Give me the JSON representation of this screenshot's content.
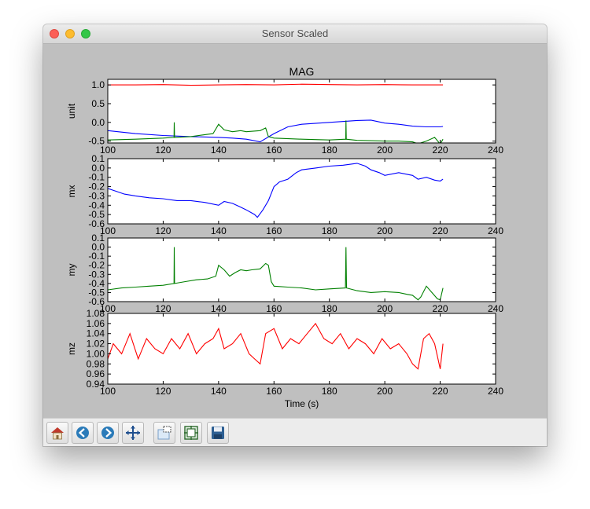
{
  "window": {
    "title": "Sensor Scaled"
  },
  "toolbar": {
    "buttons": [
      {
        "icon": "home-icon"
      },
      {
        "icon": "back-icon"
      },
      {
        "icon": "forward-icon"
      },
      {
        "icon": "pan-icon"
      },
      {
        "icon": "zoom-icon"
      },
      {
        "icon": "subplots-icon"
      },
      {
        "icon": "save-icon"
      }
    ]
  },
  "colors": {
    "red": "#ff0000",
    "green": "#008000",
    "blue": "#0000ff"
  },
  "chart_data": [
    {
      "type": "line",
      "title": "MAG",
      "ylabel": "unit",
      "xlim": [
        100,
        240
      ],
      "ylim": [
        -0.55,
        1.15
      ],
      "xticks": [
        "100",
        "120",
        "140",
        "160",
        "180",
        "200",
        "220",
        "240"
      ],
      "yticks": [
        "1.0",
        "0.5",
        "0.0",
        "-0.5"
      ],
      "grid": false,
      "series": [
        {
          "color": "red",
          "x": [
            100,
            110,
            120,
            130,
            140,
            150,
            160,
            170,
            180,
            190,
            200,
            210,
            220,
            221
          ],
          "values": [
            1.0,
            1.0,
            1.01,
            0.99,
            1.0,
            1.01,
            1.0,
            1.02,
            1.01,
            1.0,
            1.01,
            1.0,
            1.0,
            1.0
          ]
        },
        {
          "color": "blue",
          "x": [
            100,
            110,
            120,
            130,
            140,
            145,
            150,
            155,
            160,
            165,
            170,
            180,
            190,
            195,
            200,
            205,
            210,
            215,
            220,
            221
          ],
          "values": [
            -0.22,
            -0.3,
            -0.35,
            -0.38,
            -0.4,
            -0.42,
            -0.45,
            -0.52,
            -0.3,
            -0.12,
            -0.05,
            0.0,
            0.05,
            0.06,
            -0.02,
            -0.05,
            -0.1,
            -0.12,
            -0.12,
            -0.11
          ]
        },
        {
          "color": "green",
          "x": [
            100,
            110,
            120,
            123.9,
            124,
            124.1,
            130,
            138,
            140,
            142,
            145,
            148,
            150,
            155,
            157,
            158,
            160,
            170,
            180,
            185.9,
            186,
            186.1,
            190,
            200,
            205,
            210,
            212,
            215,
            218,
            220,
            221
          ],
          "values": [
            -0.47,
            -0.45,
            -0.42,
            -0.4,
            0.0,
            -0.4,
            -0.38,
            -0.3,
            -0.05,
            -0.2,
            -0.25,
            -0.22,
            -0.25,
            -0.22,
            -0.15,
            -0.38,
            -0.42,
            -0.45,
            -0.47,
            -0.45,
            0.05,
            -0.45,
            -0.48,
            -0.5,
            -0.5,
            -0.52,
            -0.57,
            -0.5,
            -0.4,
            -0.58,
            -0.45
          ]
        }
      ]
    },
    {
      "type": "line",
      "ylabel": "mx",
      "xlim": [
        100,
        240
      ],
      "ylim": [
        -0.6,
        0.1
      ],
      "xticks": [
        "100",
        "120",
        "140",
        "160",
        "180",
        "200",
        "220",
        "240"
      ],
      "yticks": [
        "0.1",
        "0.0",
        "-0.1",
        "-0.2",
        "-0.3",
        "-0.4",
        "-0.5",
        "-0.6"
      ],
      "grid": false,
      "series": [
        {
          "color": "blue",
          "x": [
            100,
            103,
            106,
            110,
            115,
            120,
            125,
            130,
            135,
            140,
            142,
            145,
            148,
            150,
            153,
            154,
            156,
            158,
            160,
            162,
            165,
            168,
            170,
            175,
            180,
            185,
            190,
            193,
            195,
            198,
            200,
            205,
            210,
            212,
            215,
            218,
            220,
            221
          ],
          "values": [
            -0.22,
            -0.25,
            -0.28,
            -0.3,
            -0.32,
            -0.33,
            -0.35,
            -0.35,
            -0.37,
            -0.4,
            -0.36,
            -0.38,
            -0.42,
            -0.45,
            -0.5,
            -0.53,
            -0.45,
            -0.35,
            -0.2,
            -0.15,
            -0.12,
            -0.05,
            -0.02,
            0.0,
            0.02,
            0.03,
            0.05,
            0.02,
            -0.02,
            -0.05,
            -0.08,
            -0.05,
            -0.08,
            -0.12,
            -0.1,
            -0.13,
            -0.14,
            -0.12
          ]
        }
      ]
    },
    {
      "type": "line",
      "ylabel": "my",
      "xlim": [
        100,
        240
      ],
      "ylim": [
        -0.6,
        0.1
      ],
      "xticks": [
        "100",
        "120",
        "140",
        "160",
        "180",
        "200",
        "220",
        "240"
      ],
      "yticks": [
        "0.1",
        "0.0",
        "-0.1",
        "-0.2",
        "-0.3",
        "-0.4",
        "-0.5",
        "-0.6"
      ],
      "grid": false,
      "series": [
        {
          "color": "green",
          "x": [
            100,
            105,
            110,
            115,
            120,
            123.9,
            124,
            124.1,
            128,
            132,
            136,
            139,
            140,
            142,
            144,
            146,
            148,
            150,
            152,
            155,
            157,
            158,
            159,
            160,
            165,
            170,
            175,
            180,
            185.8,
            186,
            186.2,
            190,
            195,
            200,
            205,
            208,
            210,
            212,
            213,
            215,
            217,
            219,
            220,
            221
          ],
          "values": [
            -0.47,
            -0.45,
            -0.44,
            -0.43,
            -0.42,
            -0.4,
            -0.0,
            -0.4,
            -0.38,
            -0.36,
            -0.35,
            -0.32,
            -0.2,
            -0.25,
            -0.32,
            -0.28,
            -0.25,
            -0.26,
            -0.25,
            -0.24,
            -0.18,
            -0.2,
            -0.38,
            -0.43,
            -0.44,
            -0.45,
            -0.47,
            -0.46,
            -0.45,
            0.0,
            -0.45,
            -0.48,
            -0.5,
            -0.49,
            -0.5,
            -0.52,
            -0.53,
            -0.58,
            -0.55,
            -0.43,
            -0.5,
            -0.57,
            -0.58,
            -0.45
          ]
        }
      ]
    },
    {
      "type": "line",
      "ylabel": "mz",
      "xlabel": "Time (s)",
      "xlim": [
        100,
        240
      ],
      "ylim": [
        0.94,
        1.08
      ],
      "xticks": [
        "100",
        "120",
        "140",
        "160",
        "180",
        "200",
        "220",
        "240"
      ],
      "yticks": [
        "1.08",
        "1.06",
        "1.04",
        "1.02",
        "1.00",
        "0.98",
        "0.96",
        "0.94"
      ],
      "grid": false,
      "series": [
        {
          "color": "red",
          "x": [
            100,
            102,
            105,
            108,
            111,
            114,
            117,
            120,
            123,
            126,
            129,
            132,
            135,
            138,
            140,
            142,
            145,
            148,
            151,
            153,
            155,
            157,
            160,
            163,
            166,
            169,
            172,
            175,
            178,
            181,
            184,
            187,
            190,
            193,
            196,
            199,
            202,
            205,
            208,
            210,
            212,
            214,
            216,
            218,
            220,
            221
          ],
          "values": [
            0.99,
            1.02,
            1.0,
            1.04,
            0.99,
            1.03,
            1.01,
            1.0,
            1.03,
            1.01,
            1.04,
            1.0,
            1.02,
            1.03,
            1.05,
            1.01,
            1.02,
            1.04,
            1.0,
            0.99,
            0.98,
            1.04,
            1.05,
            1.01,
            1.03,
            1.02,
            1.04,
            1.06,
            1.03,
            1.02,
            1.04,
            1.01,
            1.03,
            1.02,
            1.0,
            1.03,
            1.01,
            1.02,
            1.0,
            0.98,
            0.97,
            1.03,
            1.04,
            1.02,
            0.97,
            1.02
          ]
        }
      ]
    }
  ]
}
